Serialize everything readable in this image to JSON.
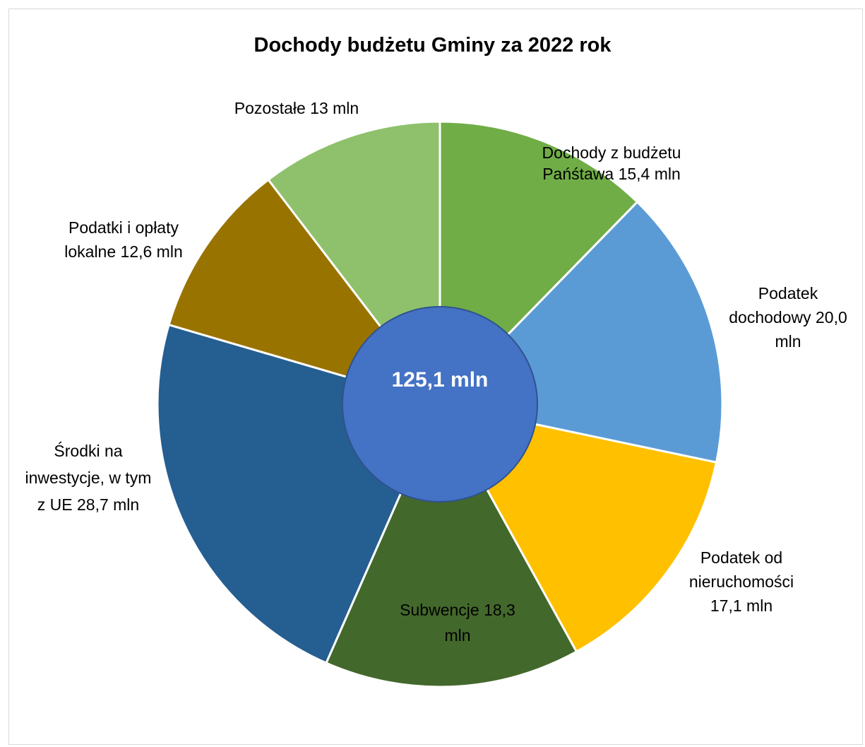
{
  "chart_data": {
    "type": "pie",
    "title": "Dochody budżetu Gminy za 2022 rok",
    "center_label": "125,1 mln",
    "slices": [
      {
        "name": "Dochody z budżetu Państawa",
        "value": 15.4,
        "unit": "mln",
        "label_lines": [
          "Dochody z budżetu",
          "Pańśtawa 15,4 mln"
        ],
        "color": "#70ad47"
      },
      {
        "name": "Podatek dochodowy",
        "value": 20.0,
        "unit": "mln",
        "label_lines": [
          "Podatek",
          "dochodowy 20,0",
          "mln"
        ],
        "color": "#5b9bd5"
      },
      {
        "name": "Podatek od nieruchomości",
        "value": 17.1,
        "unit": "mln",
        "label_lines": [
          "Podatek od",
          "nieruchomości",
          "17,1 mln"
        ],
        "color": "#ffc000"
      },
      {
        "name": "Subwencje",
        "value": 18.3,
        "unit": "mln",
        "label_lines": [
          "Subwencje 18,3",
          "mln"
        ],
        "color": "#43682b"
      },
      {
        "name": "Środki na inwestycje, w tym z UE",
        "value": 28.7,
        "unit": "mln",
        "label_lines": [
          "Środki na",
          "inwestycje, w tym",
          "z UE 28,7 mln"
        ],
        "color": "#255e91"
      },
      {
        "name": "Podatki i opłaty lokalne",
        "value": 12.6,
        "unit": "mln",
        "label_lines": [
          "Podatki i opłaty",
          "lokalne  12,6 mln"
        ],
        "color": "#997300"
      },
      {
        "name": "Pozostałe",
        "value": 13,
        "unit": "mln",
        "label_lines": [
          "Pozostałe 13 mln"
        ],
        "color": "#8fc16c"
      }
    ],
    "center_color": "#4472c4",
    "legend": "none"
  }
}
